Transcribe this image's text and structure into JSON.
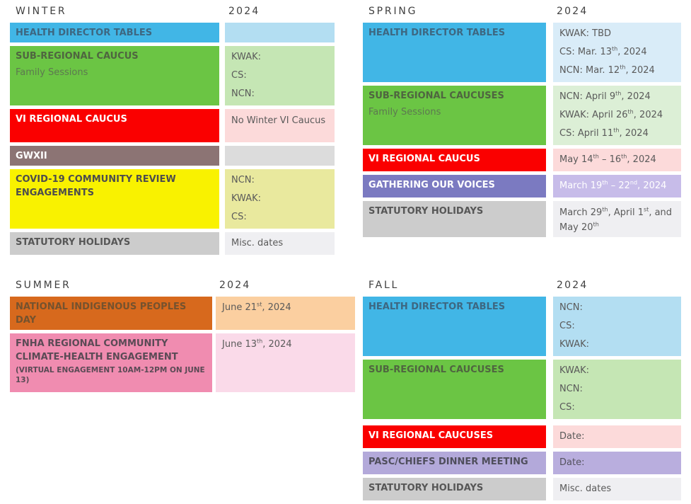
{
  "palette": {
    "header_text": "#3f3f3f",
    "blue": "#41b6e6",
    "value_blue": "#b3def2",
    "value_blue_light": "#d9ecf8",
    "green": "#6bc544",
    "value_green": "#c5e6b4",
    "value_green_light": "#dcefd6",
    "red": "#fa0000",
    "value_red": "#fcdada",
    "brown": "#8c7474",
    "value_brown_gray": "#dcdcdc",
    "yellow": "#f9f200",
    "value_yellow": "#e9e99e",
    "gray": "#cccccc",
    "value_gray": "#efeff2",
    "purple": "#7b7ac1",
    "value_purple": "#c7bce9",
    "lavender": "#b3a9da",
    "value_lavender": "#b9aede",
    "orange": "#d7691d",
    "value_orange": "#fbcfa0",
    "pink": "#f08cb0",
    "value_pink": "#fadae9"
  },
  "tables": {
    "winter": {
      "title": "WINTER",
      "year": "2024",
      "rows": [
        {
          "label": "HEALTH DIRECTOR TABLES",
          "values": []
        },
        {
          "label": "SUB-REGIONAL CAUCUS",
          "sublabel": "Family Sessions",
          "values": [
            "KWAK:",
            "CS:",
            "NCN:"
          ]
        },
        {
          "label": "VI REGIONAL CAUCUS",
          "values": [
            "No Winter VI Caucus"
          ]
        },
        {
          "label": "GWXII",
          "values": []
        },
        {
          "label": "COVID-19 COMMUNITY REVIEW ENGAGEMENTS",
          "values": [
            "NCN:",
            "KWAK:",
            "CS:"
          ]
        },
        {
          "label": "STATUTORY HOLIDAYS",
          "values": [
            "Misc. dates"
          ]
        }
      ]
    },
    "spring": {
      "title": "SPRING",
      "year": "2024",
      "rows": [
        {
          "label": "HEALTH DIRECTOR TABLES",
          "values": [
            "KWAK: TBD",
            "CS: Mar. 13th, 2024",
            "NCN: Mar. 12th, 2024"
          ]
        },
        {
          "label": "SUB-REGIONAL CAUCUSES",
          "sublabel": "Family Sessions",
          "values": [
            "NCN: April 9th, 2024",
            "KWAK: April 26th, 2024",
            "CS: April 11th, 2024"
          ]
        },
        {
          "label": "VI REGIONAL CAUCUS",
          "values": [
            "May 14th – 16th, 2024"
          ]
        },
        {
          "label": "GATHERING OUR VOICES",
          "values": [
            "March 19th – 22nd, 2024"
          ]
        },
        {
          "label": "STATUTORY HOLIDAYS",
          "values": [
            "March 29th, April 1st, and May 20th"
          ]
        }
      ]
    },
    "summer": {
      "title": "SUMMER",
      "year": "2024",
      "rows": [
        {
          "label": "NATIONAL INDIGENOUS PEOPLES DAY",
          "values": [
            "June 21st, 2024"
          ]
        },
        {
          "label": "FNHA REGIONAL COMMUNITY CLIMATE-HEALTH ENGAGEMENT",
          "subcaption": "(VIRTUAL ENGAGEMENT 10AM-12PM ON JUNE 13)",
          "values": [
            "June 13th, 2024"
          ]
        }
      ]
    },
    "fall": {
      "title": "FALL",
      "year": "2024",
      "rows": [
        {
          "label": "HEALTH DIRECTOR TABLES",
          "values": [
            "NCN:",
            "CS:",
            "KWAK:"
          ]
        },
        {
          "label": "SUB-REGIONAL CAUCUSES",
          "values": [
            "KWAK:",
            "NCN:",
            "CS:"
          ]
        },
        {
          "label": "VI REGIONAL CAUCUSES",
          "values": [
            "Date:"
          ]
        },
        {
          "label": "PASC/CHIEFS DINNER MEETING",
          "values": [
            "Date:"
          ]
        },
        {
          "label": "STATUTORY HOLIDAYS",
          "values": [
            "Misc. dates"
          ]
        }
      ]
    }
  }
}
